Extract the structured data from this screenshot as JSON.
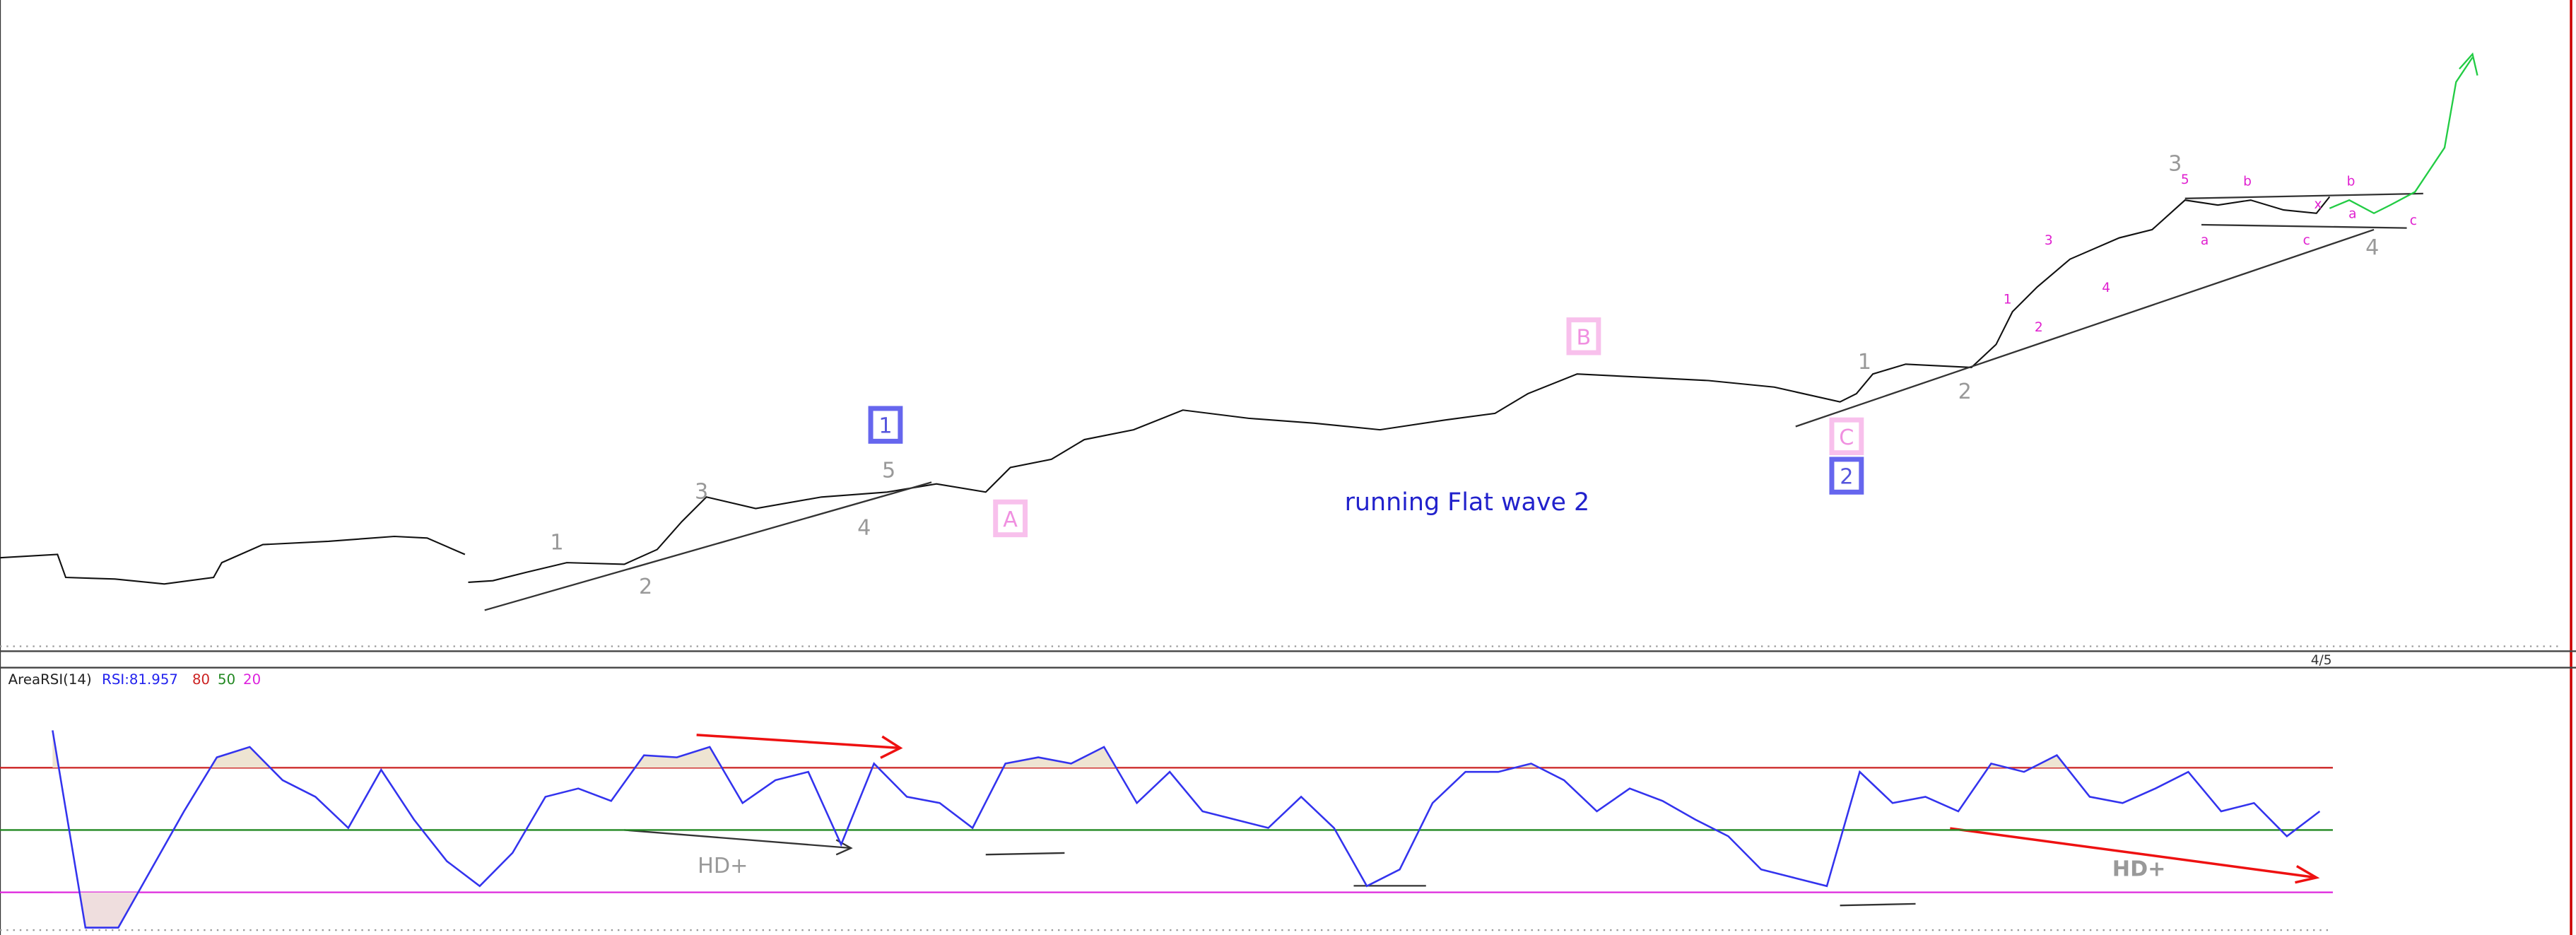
{
  "price_panel": {
    "labels": [
      "1",
      "2",
      "3",
      "4",
      "5",
      "1",
      "A",
      "B",
      "C",
      "2",
      "1",
      "2",
      "3",
      "4",
      "5",
      "3",
      "1",
      "2",
      "4",
      "b",
      "a",
      "c",
      "x",
      "a",
      "b",
      "c",
      "running Flat wave 2",
      "4/5"
    ]
  },
  "chart_data": {
    "type": "line",
    "title": "AreaRSI(14)",
    "subtitle": "RSI:81.957",
    "series": [
      {
        "name": "RSI",
        "color": "#3333ee",
        "values": [
          98,
          3,
          3,
          31,
          59,
          85,
          90,
          74,
          66,
          51,
          79,
          55,
          35,
          23,
          39,
          66,
          70,
          64,
          86,
          85,
          90,
          63,
          74,
          78,
          43,
          82,
          66,
          63,
          51,
          82,
          85,
          82,
          90,
          63,
          78,
          59,
          55,
          51,
          66,
          51,
          23,
          31,
          63,
          78,
          78,
          82,
          74,
          59,
          70,
          64,
          55,
          47,
          31,
          27,
          23,
          78,
          63,
          66,
          59,
          82,
          78,
          86,
          66,
          63,
          70,
          78,
          59,
          63,
          47,
          59
        ]
      }
    ],
    "ylim": [
      0,
      100
    ],
    "yticks": [
      80,
      50,
      20
    ],
    "level_colors": [
      "#cc2222",
      "#228822",
      "#dd22dd"
    ],
    "annotations": [
      "HD+",
      "HD+"
    ]
  }
}
